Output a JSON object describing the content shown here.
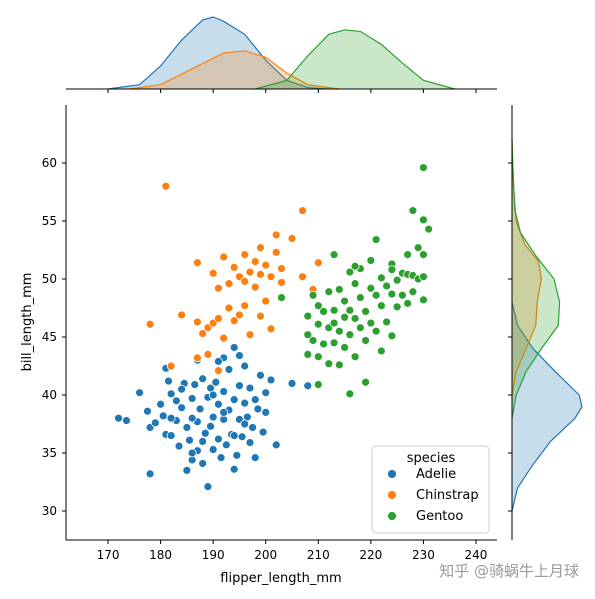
{
  "chart_data": {
    "type": "scatter",
    "title": "",
    "xlabel": "flipper_length_mm",
    "ylabel": "bill_length_mm",
    "xlim": [
      162,
      244
    ],
    "ylim": [
      27.5,
      65
    ],
    "xticks": [
      170,
      180,
      190,
      200,
      210,
      220,
      230,
      240
    ],
    "yticks": [
      30,
      35,
      40,
      45,
      50,
      55,
      60
    ],
    "legend": {
      "title": "species",
      "placement": "lower-right"
    },
    "marginals": "kde",
    "series": [
      {
        "name": "Adelie",
        "color": "#1f77b4",
        "points": [
          [
            172,
            38
          ],
          [
            173.5,
            37.8
          ],
          [
            176,
            40.2
          ],
          [
            177.5,
            38.6
          ],
          [
            178,
            37.2
          ],
          [
            178,
            33.2
          ],
          [
            179,
            37.6
          ],
          [
            180,
            39.2
          ],
          [
            180.5,
            38.2
          ],
          [
            181,
            36.6
          ],
          [
            181.5,
            41.2
          ],
          [
            182,
            36.5
          ],
          [
            182,
            40.1
          ],
          [
            183,
            37.8
          ],
          [
            183.5,
            35.6
          ],
          [
            184,
            38.9
          ],
          [
            184.5,
            41
          ],
          [
            185,
            37.2
          ],
          [
            185.5,
            36.1
          ],
          [
            186,
            39.7
          ],
          [
            186,
            34.4
          ],
          [
            186.5,
            40.9
          ],
          [
            187,
            37.7
          ],
          [
            187,
            35.2
          ],
          [
            187.5,
            38.8
          ],
          [
            188,
            34.1
          ],
          [
            188,
            41.4
          ],
          [
            188.5,
            36.7
          ],
          [
            189,
            39.8
          ],
          [
            189.5,
            40.6
          ],
          [
            189.5,
            37.3
          ],
          [
            190,
            35.3
          ],
          [
            190,
            38.1
          ],
          [
            190.5,
            41.1
          ],
          [
            191,
            39.2
          ],
          [
            191,
            36.2
          ],
          [
            191.5,
            34.6
          ],
          [
            192,
            37.9
          ],
          [
            192,
            40.3
          ],
          [
            192.5,
            35.7
          ],
          [
            193,
            38.7
          ],
          [
            193,
            42.2
          ],
          [
            193.5,
            36.6
          ],
          [
            194,
            39.6
          ],
          [
            194.5,
            34.8
          ],
          [
            195,
            37.9
          ],
          [
            195,
            40.8
          ],
          [
            195.5,
            36.4
          ],
          [
            196,
            39.3
          ],
          [
            196,
            42.5
          ],
          [
            196.5,
            38.1
          ],
          [
            197,
            35.9
          ],
          [
            197,
            40.6
          ],
          [
            197.5,
            37.2
          ],
          [
            198,
            39.6
          ],
          [
            198,
            34.6
          ],
          [
            198.5,
            38.8
          ],
          [
            199,
            41.7
          ],
          [
            199.5,
            36.8
          ],
          [
            200,
            38.5
          ],
          [
            201,
            41.3
          ],
          [
            202,
            35.7
          ],
          [
            205,
            41
          ],
          [
            208,
            40.8
          ],
          [
            184,
            40.5
          ],
          [
            186,
            38
          ],
          [
            188,
            36
          ],
          [
            190,
            40
          ],
          [
            192,
            38.5
          ],
          [
            194,
            36.5
          ],
          [
            196,
            37.5
          ],
          [
            185,
            33.5
          ],
          [
            189,
            32.1
          ],
          [
            194,
            33.6
          ],
          [
            181,
            42.3
          ],
          [
            183,
            39.5
          ],
          [
            187,
            43
          ],
          [
            192,
            43.2
          ],
          [
            194,
            44.1
          ],
          [
            191,
            42.9
          ],
          [
            186,
            35
          ],
          [
            195,
            43.4
          ],
          [
            182,
            38
          ],
          [
            200,
            40.2
          ]
        ]
      },
      {
        "name": "Chinstrap",
        "color": "#ff7f0e",
        "points": [
          [
            181,
            58
          ],
          [
            178,
            46.1
          ],
          [
            182,
            42.5
          ],
          [
            184,
            46.9
          ],
          [
            187,
            43.2
          ],
          [
            187,
            51.4
          ],
          [
            187,
            46.3
          ],
          [
            188,
            45.3
          ],
          [
            189,
            45.8
          ],
          [
            190,
            50.5
          ],
          [
            190,
            46.2
          ],
          [
            191,
            46.6
          ],
          [
            191,
            49.2
          ],
          [
            192,
            51.9
          ],
          [
            192,
            44.9
          ],
          [
            193,
            47.5
          ],
          [
            193,
            49.6
          ],
          [
            194,
            46.4
          ],
          [
            194,
            51
          ],
          [
            195,
            50.2
          ],
          [
            195,
            46.9
          ],
          [
            196,
            52.1
          ],
          [
            196,
            49.8
          ],
          [
            196,
            47.7
          ],
          [
            197,
            50.6
          ],
          [
            197,
            45.2
          ],
          [
            198,
            51.5
          ],
          [
            198,
            49.3
          ],
          [
            199,
            52.7
          ],
          [
            199,
            50.4
          ],
          [
            199,
            46.8
          ],
          [
            200,
            48.1
          ],
          [
            201,
            50.2
          ],
          [
            201,
            45.7
          ],
          [
            202,
            52.3
          ],
          [
            203,
            49.7
          ],
          [
            203,
            50.9
          ],
          [
            205,
            53.5
          ],
          [
            207,
            55.9
          ],
          [
            207,
            50.2
          ],
          [
            210,
            51.4
          ],
          [
            209,
            49.1
          ],
          [
            202,
            53.8
          ],
          [
            200,
            51.2
          ],
          [
            191,
            42.1
          ],
          [
            189,
            43.5
          ]
        ]
      },
      {
        "name": "Gentoo",
        "color": "#2ca02c",
        "points": [
          [
            203,
            48.4
          ],
          [
            208,
            46.8
          ],
          [
            208,
            45.2
          ],
          [
            208,
            43.5
          ],
          [
            209,
            44.7
          ],
          [
            209,
            48.6
          ],
          [
            210,
            46.1
          ],
          [
            210,
            43.3
          ],
          [
            210,
            40.9
          ],
          [
            211,
            47.2
          ],
          [
            211,
            44.4
          ],
          [
            212,
            45.8
          ],
          [
            212,
            48.9
          ],
          [
            213,
            46.2
          ],
          [
            213,
            44.5
          ],
          [
            213,
            47.3
          ],
          [
            214,
            49.1
          ],
          [
            214,
            42.6
          ],
          [
            214,
            45.5
          ],
          [
            215,
            48.1
          ],
          [
            215,
            46.7
          ],
          [
            215,
            44.1
          ],
          [
            216,
            50.6
          ],
          [
            216,
            47.3
          ],
          [
            216,
            45.2
          ],
          [
            217,
            49.6
          ],
          [
            217,
            46.6
          ],
          [
            217,
            43.3
          ],
          [
            218,
            48.4
          ],
          [
            218,
            45.8
          ],
          [
            218,
            50.9
          ],
          [
            219,
            47.2
          ],
          [
            219,
            44.7
          ],
          [
            220,
            49.2
          ],
          [
            220,
            46.2
          ],
          [
            221,
            48.6
          ],
          [
            221,
            45.5
          ],
          [
            221,
            53.4
          ],
          [
            222,
            47.7
          ],
          [
            222,
            50.1
          ],
          [
            222,
            43.8
          ],
          [
            223,
            49.4
          ],
          [
            223,
            46.3
          ],
          [
            224,
            48.7
          ],
          [
            224,
            51.3
          ],
          [
            225,
            49.9
          ],
          [
            225,
            47.6
          ],
          [
            226,
            50.5
          ],
          [
            226,
            48.6
          ],
          [
            227,
            50.4
          ],
          [
            227,
            52.1
          ],
          [
            228,
            50.3
          ],
          [
            228,
            48.9
          ],
          [
            229,
            50
          ],
          [
            229,
            52.7
          ],
          [
            230,
            59.6
          ],
          [
            230,
            55.1
          ],
          [
            230,
            50.2
          ],
          [
            231,
            54.3
          ],
          [
            228,
            55.9
          ],
          [
            230,
            52.1
          ],
          [
            230,
            48.2
          ],
          [
            219,
            41.1
          ],
          [
            216,
            40.1
          ],
          [
            212,
            42.7
          ],
          [
            217,
            51.1
          ],
          [
            220,
            51.6
          ],
          [
            224,
            50.8
          ],
          [
            213,
            52.1
          ],
          [
            227,
            47.9
          ],
          [
            210,
            47.7
          ],
          [
            224,
            45.1
          ]
        ]
      }
    ],
    "kde_x": [
      {
        "name": "Adelie",
        "color": "#1f77b4",
        "points": [
          [
            170,
            0
          ],
          [
            176,
            0.06
          ],
          [
            180,
            0.32
          ],
          [
            184,
            0.68
          ],
          [
            188,
            0.96
          ],
          [
            190,
            1
          ],
          [
            192,
            0.94
          ],
          [
            196,
            0.76
          ],
          [
            200,
            0.4
          ],
          [
            204,
            0.12
          ],
          [
            208,
            0.02
          ],
          [
            212,
            0
          ]
        ]
      },
      {
        "name": "Chinstrap",
        "color": "#ff7f0e",
        "points": [
          [
            174,
            0
          ],
          [
            180,
            0.06
          ],
          [
            186,
            0.28
          ],
          [
            192,
            0.5
          ],
          [
            196,
            0.53
          ],
          [
            200,
            0.44
          ],
          [
            204,
            0.22
          ],
          [
            208,
            0.06
          ],
          [
            214,
            0
          ]
        ]
      },
      {
        "name": "Gentoo",
        "color": "#2ca02c",
        "points": [
          [
            198,
            0
          ],
          [
            204,
            0.12
          ],
          [
            208,
            0.46
          ],
          [
            212,
            0.76
          ],
          [
            215,
            0.82
          ],
          [
            218,
            0.8
          ],
          [
            222,
            0.62
          ],
          [
            226,
            0.36
          ],
          [
            230,
            0.12
          ],
          [
            236,
            0
          ]
        ]
      }
    ],
    "kde_y": [
      {
        "name": "Adelie",
        "color": "#1f77b4",
        "points": [
          [
            30,
            0
          ],
          [
            32,
            0.08
          ],
          [
            34,
            0.3
          ],
          [
            36,
            0.55
          ],
          [
            38,
            0.9
          ],
          [
            39,
            1
          ],
          [
            40,
            0.96
          ],
          [
            42,
            0.62
          ],
          [
            44,
            0.3
          ],
          [
            46,
            0.08
          ],
          [
            48,
            0
          ]
        ]
      },
      {
        "name": "Chinstrap",
        "color": "#ff7f0e",
        "points": [
          [
            40,
            0
          ],
          [
            42,
            0.06
          ],
          [
            44,
            0.2
          ],
          [
            46,
            0.34
          ],
          [
            48,
            0.36
          ],
          [
            50,
            0.42
          ],
          [
            51.5,
            0.38
          ],
          [
            53,
            0.18
          ],
          [
            55,
            0.06
          ],
          [
            58,
            0.02
          ],
          [
            62,
            0
          ]
        ]
      },
      {
        "name": "Gentoo",
        "color": "#2ca02c",
        "points": [
          [
            38,
            0
          ],
          [
            40,
            0.06
          ],
          [
            42,
            0.2
          ],
          [
            44,
            0.42
          ],
          [
            46,
            0.66
          ],
          [
            48,
            0.68
          ],
          [
            50,
            0.6
          ],
          [
            52,
            0.34
          ],
          [
            54,
            0.12
          ],
          [
            56,
            0.04
          ],
          [
            60,
            0.01
          ],
          [
            62,
            0
          ]
        ]
      }
    ]
  },
  "watermark": "知乎 @骑蜗牛上月球"
}
